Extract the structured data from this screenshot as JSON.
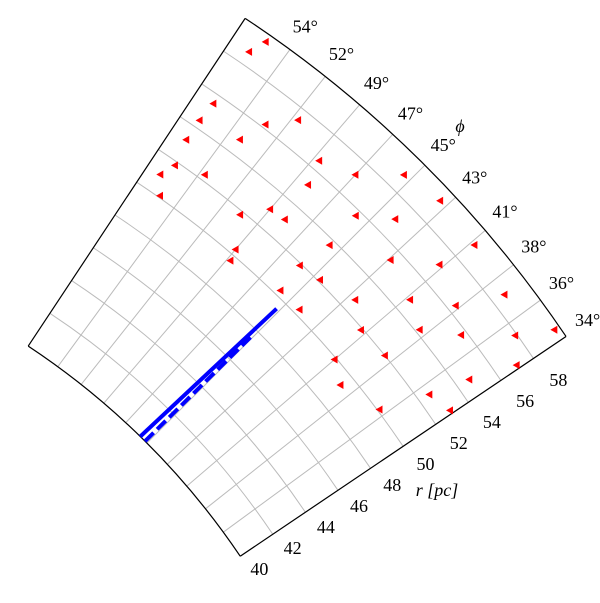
{
  "chart_data": {
    "type": "polar",
    "xlabel": "r [pc]",
    "ylabel": "ϕ",
    "rlim": [
      40,
      60
    ],
    "rticks": [
      40,
      42,
      44,
      46,
      48,
      50,
      52,
      54,
      56,
      58
    ],
    "thetalim": [
      34,
      56.5
    ],
    "thetaticks": [
      {
        "value": 34,
        "label": "34°"
      },
      {
        "value": 36.2,
        "label": "36°"
      },
      {
        "value": 38.4,
        "label": "38°"
      },
      {
        "value": 40.6,
        "label": "41°"
      },
      {
        "value": 42.8,
        "label": "43°"
      },
      {
        "value": 45,
        "label": "45°"
      },
      {
        "value": 47.2,
        "label": "47°"
      },
      {
        "value": 49.4,
        "label": "49°"
      },
      {
        "value": 51.6,
        "label": "52°"
      },
      {
        "value": 53.8,
        "label": "54°"
      }
    ],
    "grid": true,
    "series": [
      {
        "kind": "line",
        "color": "#0000ff",
        "dash": false,
        "r": [
          40,
          49.5
        ],
        "theta": [
          45.7,
          45.2
        ]
      },
      {
        "kind": "line",
        "color": "#0000ff",
        "dash": true,
        "r": [
          40,
          47.7
        ],
        "theta": [
          45.2,
          45.1
        ]
      },
      {
        "kind": "scatter",
        "color": "#ff0000",
        "r": [
          59.6,
          58.7,
          55.5,
          54.4,
          53.2,
          51.8,
          50.1,
          57.4,
          56.5,
          55.2,
          53.0,
          51.8,
          52.3,
          50.3,
          53.1,
          55.7,
          58.9,
          59.3,
          57.0,
          53.7,
          51.9,
          50.3,
          52.1,
          52.7,
          55.4,
          57.1,
          59.1,
          58.7,
          56.4,
          54.2,
          51.9,
          49.9,
          52.0,
          49.3,
          50.1,
          52.6,
          54.7,
          57.1,
          59.7,
          57.9,
          55.7,
          54.8,
          50.3,
          49.7,
          56.2,
          54.8,
          57.2,
          53.0,
          51.0
        ],
        "theta": [
          55.0,
          55.4,
          55.4,
          55.5,
          55.5,
          55.2,
          54.9,
          51.3,
          49.1,
          48.7,
          49.4,
          50.5,
          53.5,
          49.4,
          48.4,
          45.7,
          45.4,
          43.2,
          44.1,
          45.6,
          46.0,
          45.8,
          44.6,
          42.4,
          42.7,
          40.8,
          40.4,
          37.5,
          38.6,
          38.8,
          40.9,
          40.6,
          38.9,
          39.2,
          36.6,
          35.6,
          35.0,
          34.2,
          34.6,
          35.5,
          37.2,
          40.4,
          44.2,
          49.2,
          52.5,
          53.1,
          47.2,
          34.2,
          55.6
        ]
      }
    ]
  }
}
